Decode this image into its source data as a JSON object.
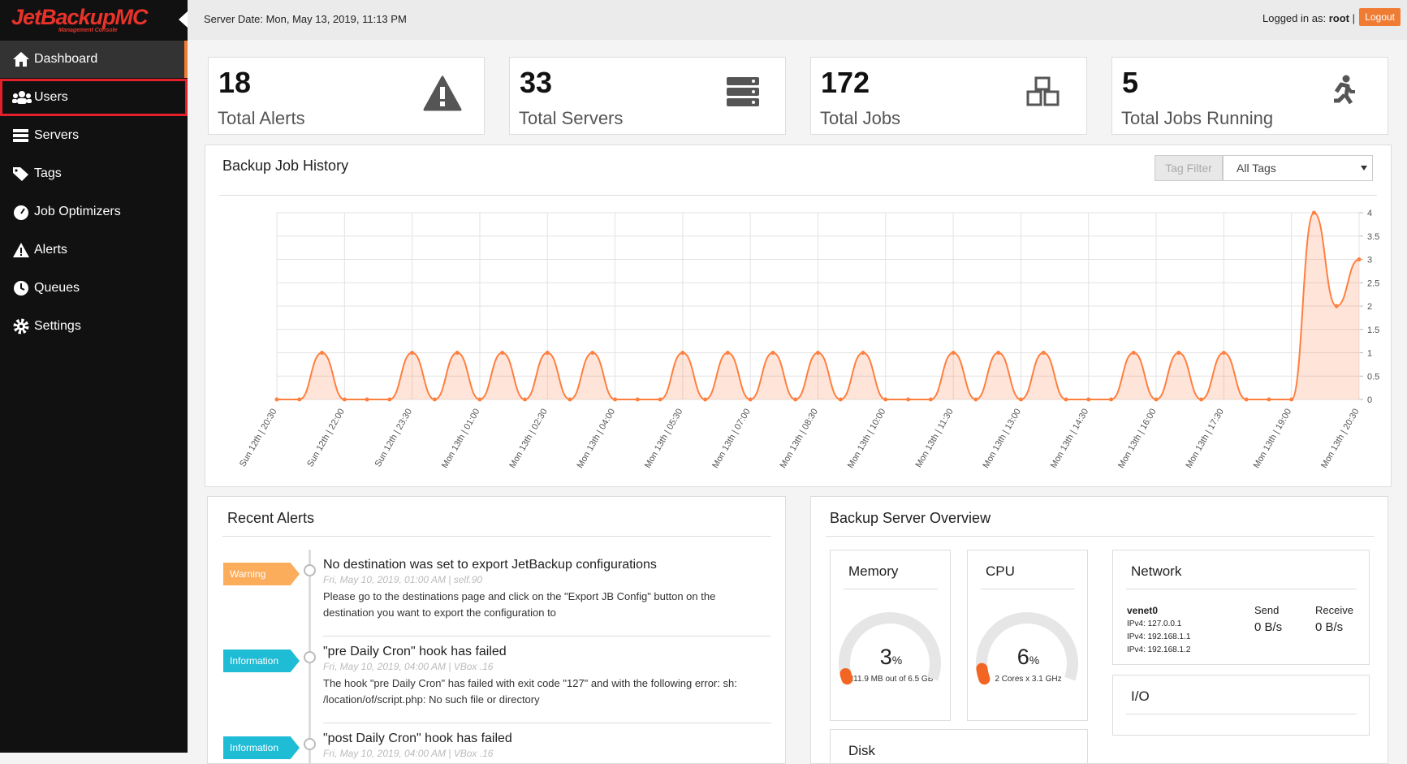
{
  "brand": {
    "logo": "JetBackupMC",
    "tagline": "Management Console"
  },
  "header": {
    "server_date": "Server Date: Mon, May 13, 2019, 11:13 PM",
    "logged_in_label": "Logged in as:",
    "user": "root",
    "separator": "|",
    "logout": "Logout"
  },
  "menu": [
    "Dashboard",
    "Users",
    "Servers",
    "Tags",
    "Job Optimizers",
    "Alerts",
    "Queues",
    "Settings"
  ],
  "stats": [
    {
      "value": 18,
      "label": "Total Alerts"
    },
    {
      "value": 33,
      "label": "Total Servers"
    },
    {
      "value": 172,
      "label": "Total Jobs"
    },
    {
      "value": 5,
      "label": "Total Jobs Running"
    }
  ],
  "history_panel": {
    "tag_filter": "Tag Filter",
    "tag_select": "All Tags"
  },
  "chart_data": {
    "type": "line",
    "title": "Backup Job History",
    "categories": [
      "Sun 12th | 20:30",
      null,
      null,
      "Sun 12th | 22:00",
      null,
      null,
      "Sun 12th | 23:30",
      null,
      null,
      "Mon 13th | 01:00",
      null,
      null,
      "Mon 13th | 02:30",
      null,
      null,
      "Mon 13th | 04:00",
      null,
      null,
      "Mon 13th | 05:30",
      null,
      null,
      "Mon 13th | 07:00",
      null,
      null,
      "Mon 13th | 08:30",
      null,
      null,
      "Mon 13th | 10:00",
      null,
      null,
      "Mon 13th | 11:30",
      null,
      null,
      "Mon 13th | 13:00",
      null,
      null,
      "Mon 13th | 14:30",
      null,
      null,
      "Mon 13th | 16:00",
      null,
      null,
      "Mon 13th | 17:30",
      null,
      null,
      "Mon 13th | 19:00",
      null,
      null,
      "Mon 13th | 20:30"
    ],
    "values": [
      0,
      0,
      1,
      0,
      0,
      0,
      1,
      0,
      1,
      0,
      1,
      0,
      1,
      0,
      1,
      0,
      0,
      0,
      1,
      0,
      1,
      0,
      1,
      0,
      1,
      0,
      1,
      0,
      0,
      0,
      1,
      0,
      1,
      0,
      1,
      0,
      0,
      0,
      1,
      0,
      1,
      0,
      1,
      0,
      0,
      0,
      4,
      2,
      3
    ],
    "ylim": [
      0,
      4
    ],
    "yticks": [
      0,
      0.5,
      1,
      1.5,
      2,
      2.5,
      3,
      3.5,
      4
    ],
    "color": "#ff7f3f",
    "grid": true
  },
  "alerts": {
    "title": "Recent Alerts",
    "items": [
      {
        "level": "Warning",
        "title": "No destination was set to export JetBackup configurations",
        "meta": "Fri, May 10, 2019, 01:00 AM | self.90",
        "body": [
          "Please go to the destinations page and click on the \"Export JB Config\" button on the",
          "destination you want to export the configuration to"
        ]
      },
      {
        "level": "Information",
        "title": "\"pre Daily Cron\" hook has failed",
        "meta": "Fri, May 10, 2019, 04:00 AM | VBox .16",
        "body": [
          "The hook \"pre Daily Cron\" has failed with exit code \"127\" and with the following error: sh:",
          "/location/of/script.php: No such file or directory"
        ]
      },
      {
        "level": "Information",
        "title": "\"post Daily Cron\" hook has failed",
        "meta": "Fri, May 10, 2019, 04:00 AM | VBox .16",
        "body": []
      }
    ]
  },
  "overview": {
    "title": "Backup Server Overview",
    "memory": {
      "title": "Memory",
      "value": 3,
      "unit": "%",
      "detail": "211.9 MB out of 6.5 GB"
    },
    "cpu": {
      "title": "CPU",
      "value": 6,
      "unit": "%",
      "detail": "2 Cores x 3.1 GHz"
    },
    "network": {
      "title": "Network",
      "interface": "venet0",
      "ips": [
        "IPv4: 127.0.0.1",
        "IPv4: 192.168.1.1",
        "IPv4: 192.168.1.2"
      ],
      "send_label": "Send",
      "send": "0 B/s",
      "receive_label": "Receive",
      "receive": "0 B/s"
    },
    "io": {
      "title": "I/O"
    },
    "disk": {
      "title": "Disk"
    }
  }
}
